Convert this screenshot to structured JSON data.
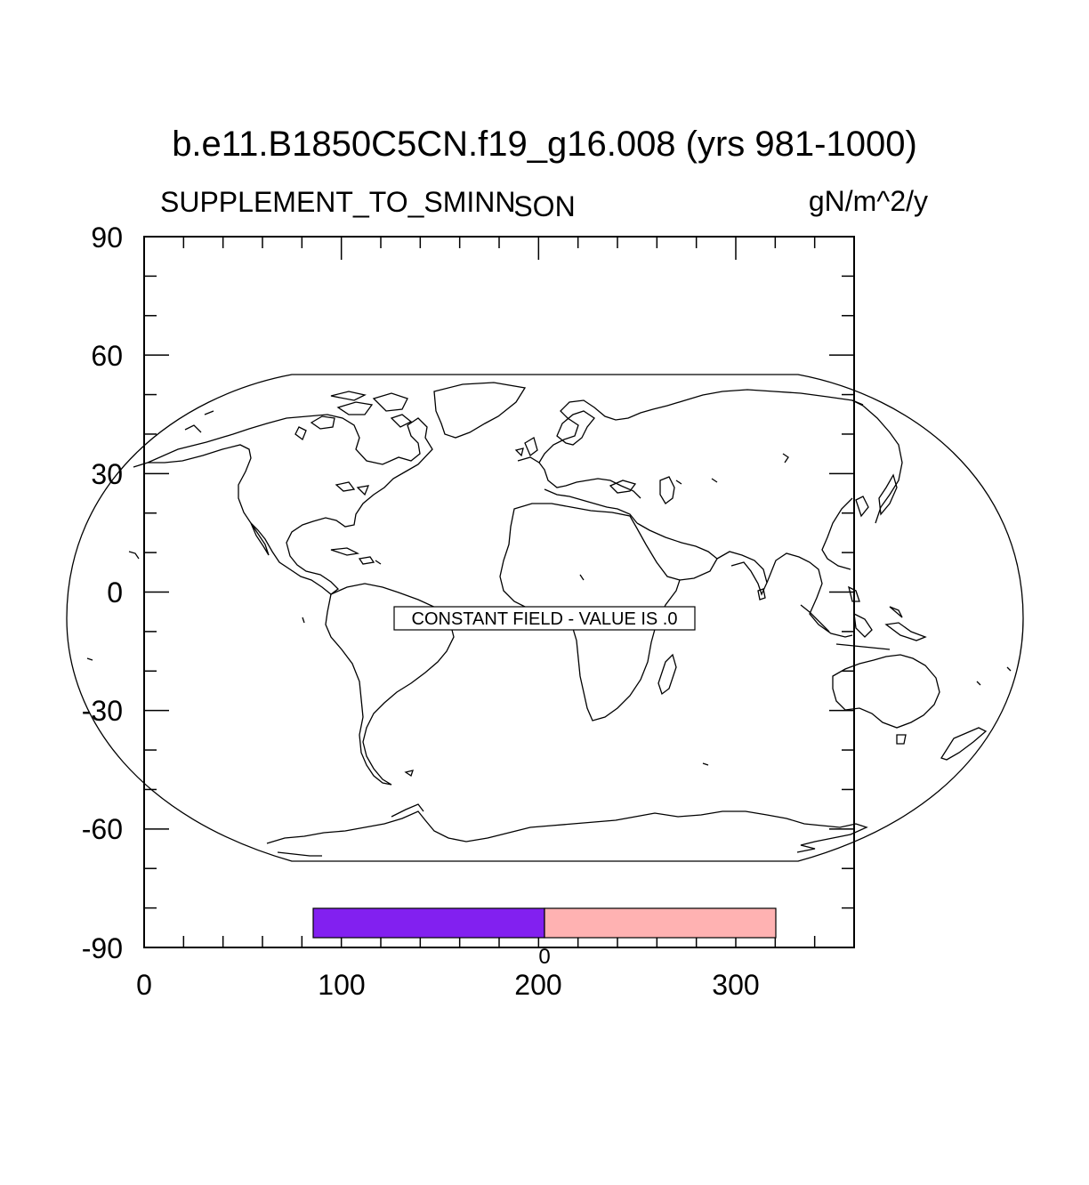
{
  "title": "b.e11.B1850C5CN.f19_g16.008 (yrs 981-1000)",
  "left_string": "SUPPLEMENT_TO_SMINN",
  "center_string": "SON",
  "right_string": "gN/m^2/y",
  "constant_field_label": "CONSTANT FIELD - VALUE IS .0",
  "map": {
    "projection": "Robinson",
    "coastlines": true
  },
  "axes": {
    "x_ticks": [
      "0",
      "100",
      "200",
      "300"
    ],
    "y_ticks": [
      "90",
      "60",
      "30",
      "0",
      "-30",
      "-60",
      "-90"
    ],
    "xlim": [
      0,
      360
    ],
    "ylim": [
      -90,
      90
    ]
  },
  "colorbar": {
    "labels": [
      "0"
    ],
    "colors": [
      "#8220f0",
      "#ffb2b2"
    ]
  }
}
